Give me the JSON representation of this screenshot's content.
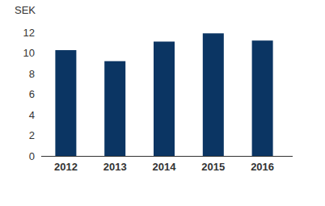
{
  "chart_data": {
    "type": "bar",
    "y_label": "SEK",
    "categories": [
      "2012",
      "2013",
      "2014",
      "2015",
      "2016"
    ],
    "values": [
      10.27,
      9.2,
      11.1,
      11.9,
      11.2
    ],
    "color": "#0b3563",
    "ylim": [
      0,
      12
    ],
    "yticks": [
      0,
      2,
      4,
      6,
      8,
      10,
      12
    ],
    "grid": false
  }
}
